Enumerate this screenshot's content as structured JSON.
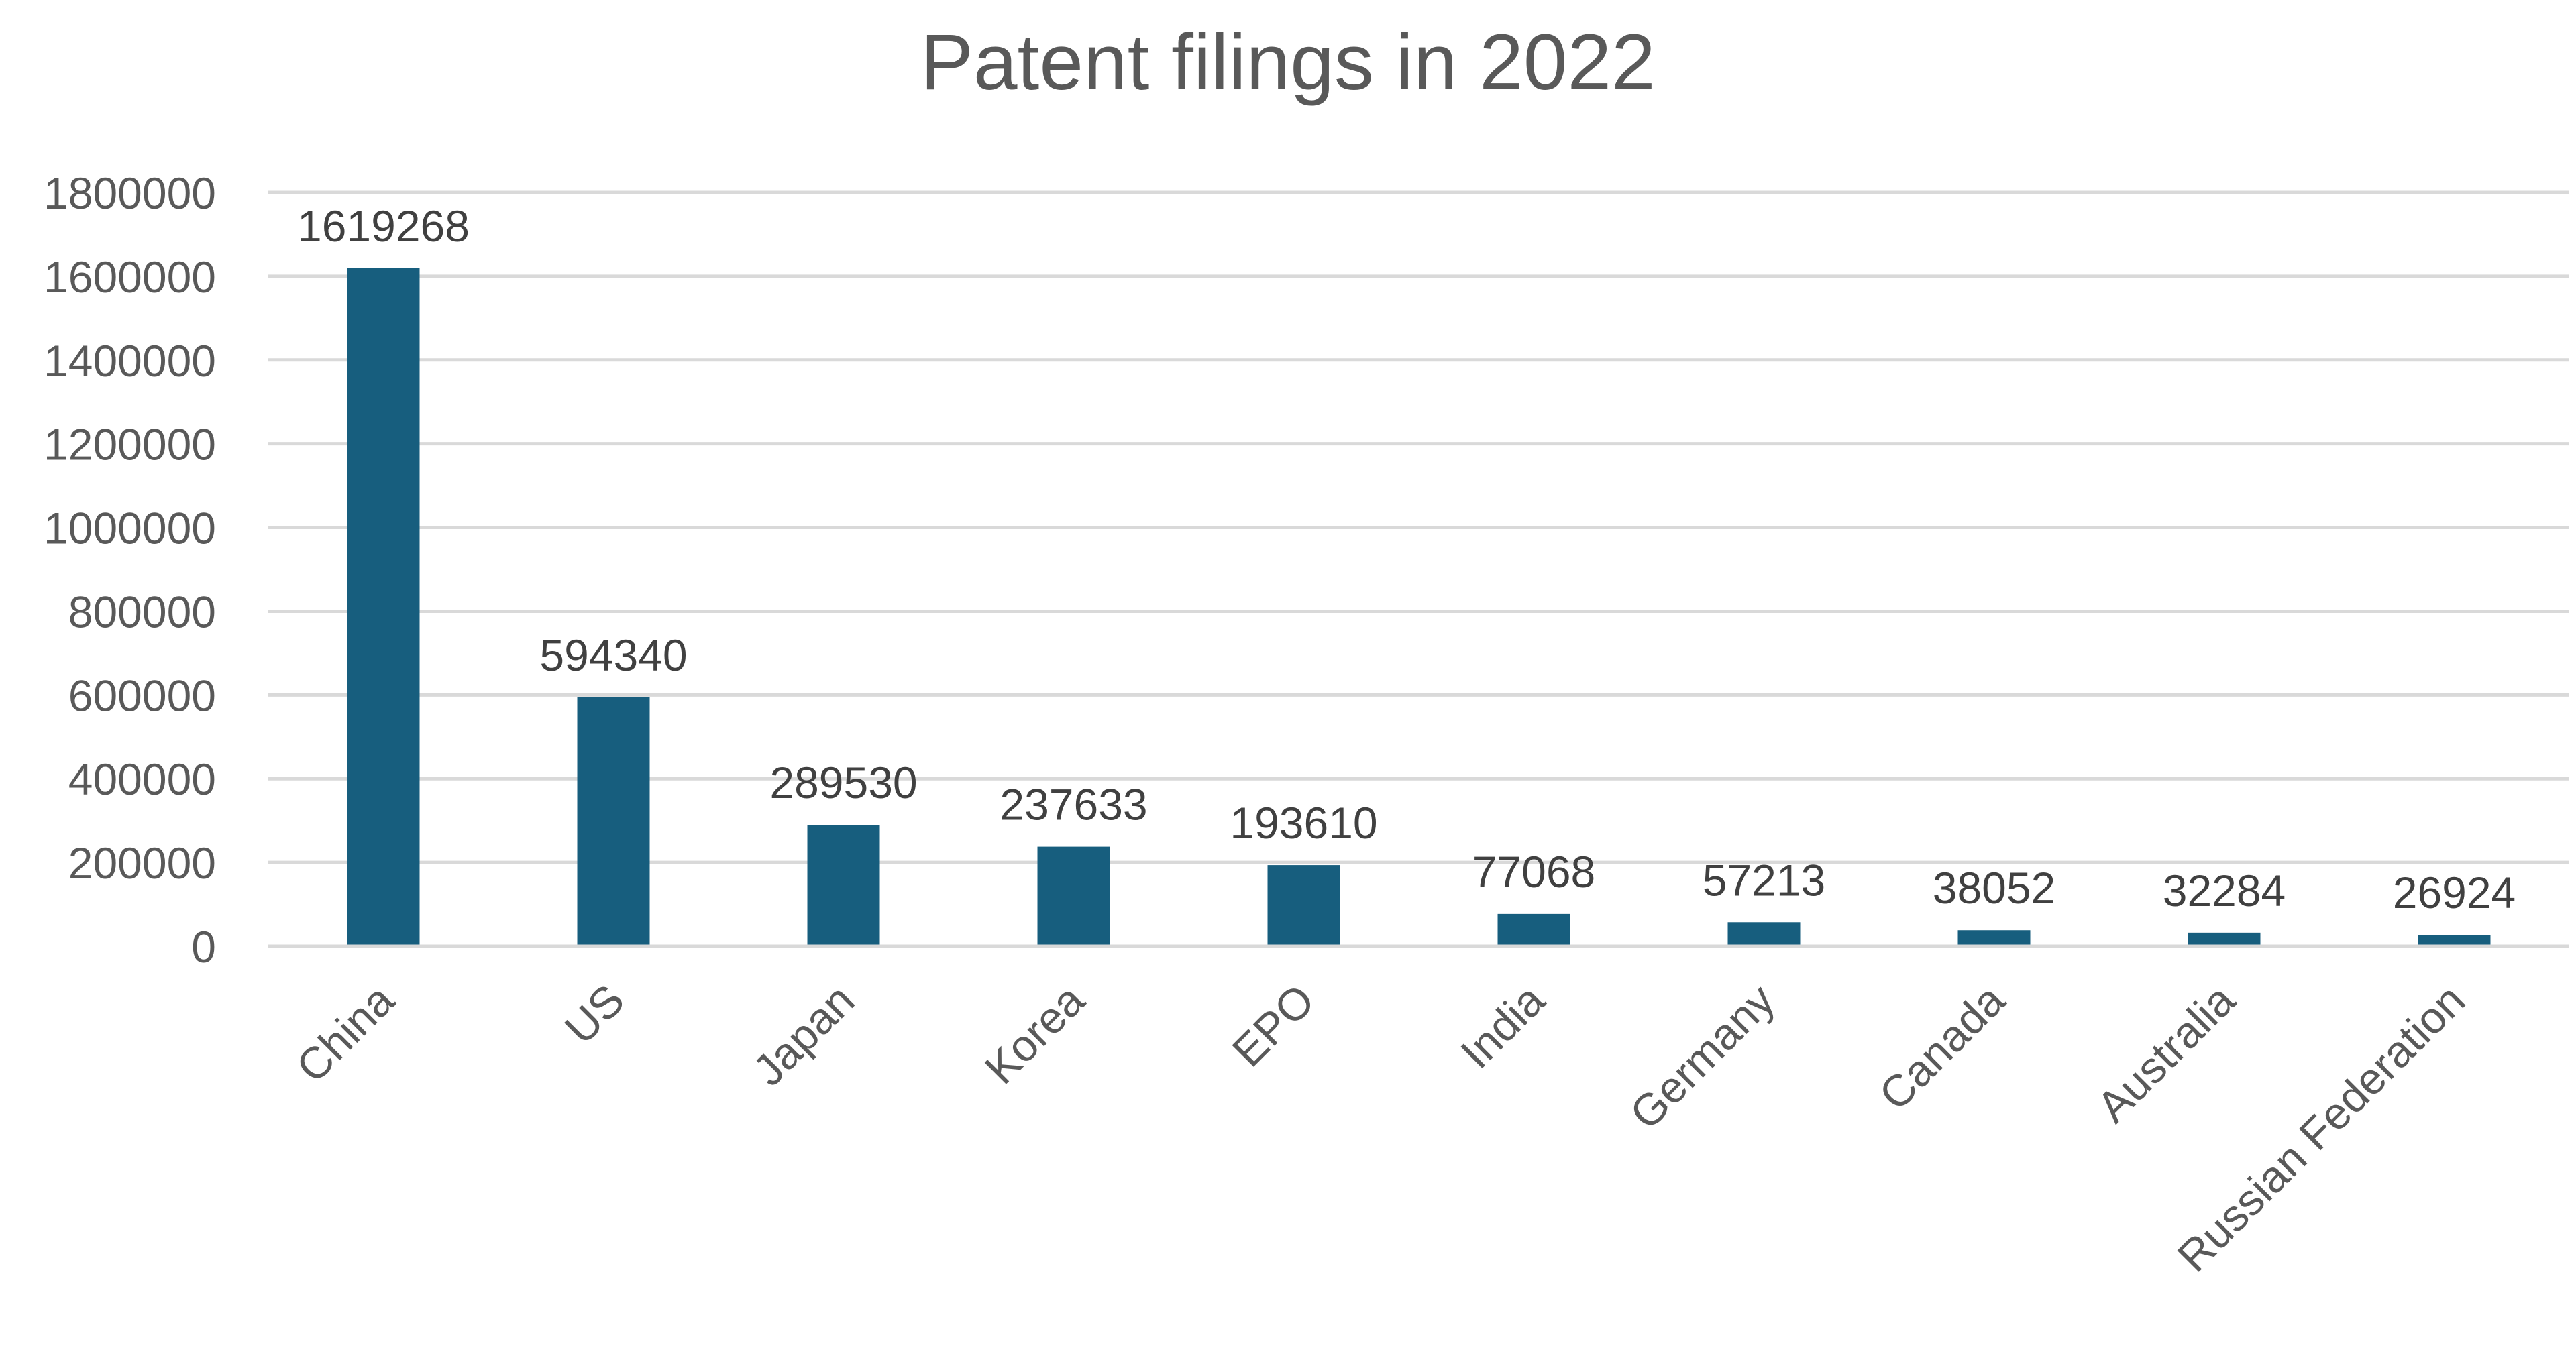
{
  "chart_data": {
    "type": "bar",
    "title": "Patent filings in 2022",
    "xlabel": "",
    "ylabel": "",
    "categories": [
      "China",
      "US",
      "Japan",
      "Korea",
      "EPO",
      "India",
      "Germany",
      "Canada",
      "Australia",
      "Russian Federation"
    ],
    "series": [
      {
        "values": [
          1619268,
          594340,
          289530,
          237633,
          193610,
          77068,
          57213,
          38052,
          32284,
          26924
        ]
      }
    ],
    "data_labels": [
      "1619268",
      "594340",
      "289530",
      "237633",
      "193610",
      "77068",
      "57213",
      "38052",
      "32284",
      "26924"
    ],
    "ylim": [
      0,
      1800000
    ],
    "yticks": [
      0,
      200000,
      400000,
      600000,
      800000,
      1000000,
      1200000,
      1400000,
      1600000,
      1800000
    ],
    "ytick_labels": [
      "0",
      "200000",
      "400000",
      "600000",
      "800000",
      "1000000",
      "1200000",
      "1400000",
      "1600000",
      "1800000"
    ],
    "grid": true,
    "legend": "none",
    "colors": {
      "bar": "#175E7E",
      "grid": "#D9D9D9",
      "tick_text": "#595959",
      "label_text": "#404040"
    }
  }
}
